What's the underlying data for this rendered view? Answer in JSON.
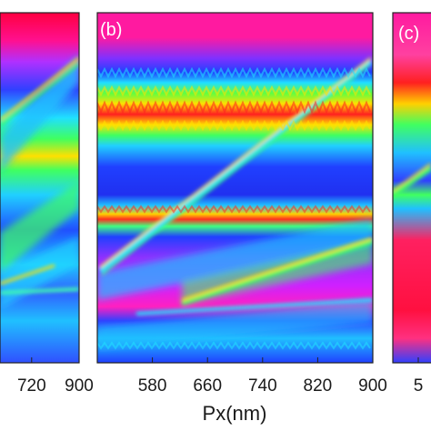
{
  "chart_data": [
    {
      "type": "heatmap",
      "panel_label": "",
      "x_tick_labels": [
        "720",
        "900"
      ],
      "x_ticks": [
        720,
        900
      ],
      "xlim": [
        600,
        900
      ],
      "colormap": "rainbow (blue-cyan-green-yellow-red-magenta)"
    },
    {
      "type": "heatmap",
      "panel_label": "(b)",
      "x_tick_labels": [
        "580",
        "660",
        "740",
        "820",
        "900"
      ],
      "x_ticks": [
        580,
        660,
        740,
        820,
        900
      ],
      "xlim": [
        500,
        900
      ],
      "xlabel": "Px(nm)",
      "colormap": "rainbow (blue-cyan-green-yellow-red-magenta)"
    },
    {
      "type": "heatmap",
      "panel_label": "(c)",
      "x_tick_labels": [
        "5"
      ],
      "xlim": [
        500,
        900
      ],
      "colormap": "rainbow (blue-cyan-green-yellow-red-magenta)"
    }
  ]
}
